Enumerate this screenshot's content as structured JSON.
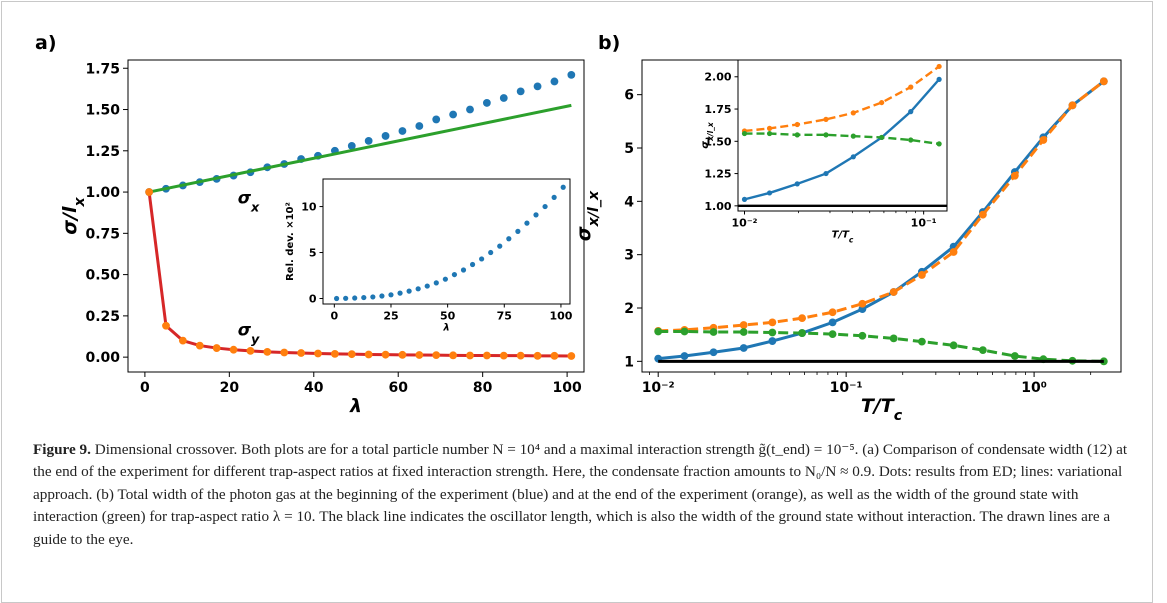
{
  "figure": {
    "panel_a_label": "a)",
    "panel_b_label": "b)"
  },
  "caption": {
    "label": "Figure 9.",
    "text": "Dimensional crossover. Both plots are for a total particle number N = 10⁴ and a maximal interaction strength g̃(t_end) = 10⁻⁵. (a) Comparison of condensate width (12) at the end of the experiment for different trap-aspect ratios at fixed interaction strength. Here, the condensate fraction amounts to N₀/N ≈ 0.9. Dots: results from ED; lines: variational approach. (b) Total width of the photon gas at the beginning of the experiment (blue) and at the end of the experiment (orange), as well as the width of the ground state with interaction (green) for trap-aspect ratio λ = 10. The black line indicates the oscillator length, which is also the width of the ground state without interaction. The drawn lines are a guide to the eye."
  },
  "colors": {
    "blue": "#1f77b4",
    "orange": "#ff7f0e",
    "green": "#2ca02c",
    "red": "#d62728",
    "black": "#000000"
  },
  "chart_data": [
    {
      "id": "a-main",
      "type": "scatter",
      "xlabel": "λ",
      "ylabel": "σ/l_x",
      "xlim": [
        -4,
        104
      ],
      "ylim": [
        -0.09,
        1.8
      ],
      "xticks": [
        0,
        20,
        40,
        60,
        80,
        100
      ],
      "xtick_labels": [
        "0",
        "20",
        "40",
        "60",
        "80",
        "100"
      ],
      "yticks": [
        0.0,
        0.25,
        0.5,
        0.75,
        1.0,
        1.25,
        1.5,
        1.75
      ],
      "ytick_labels": [
        "0.00",
        "0.25",
        "0.50",
        "0.75",
        "1.00",
        "1.25",
        "1.50",
        "1.75"
      ],
      "annotations": [
        {
          "text": "σ_x",
          "x": 22,
          "y": 0.93
        },
        {
          "text": "σ_y",
          "x": 22,
          "y": 0.13
        }
      ],
      "series": [
        {
          "name": "",
          "kind": "points",
          "color": "#1f77b4",
          "x": [
            1,
            5,
            9,
            13,
            17,
            21,
            25,
            29,
            33,
            37,
            41,
            45,
            49,
            53,
            57,
            61,
            65,
            69,
            73,
            77,
            81,
            85,
            89,
            93,
            97,
            101
          ],
          "y": [
            1.0,
            1.02,
            1.04,
            1.06,
            1.08,
            1.1,
            1.12,
            1.15,
            1.17,
            1.2,
            1.22,
            1.25,
            1.28,
            1.31,
            1.34,
            1.37,
            1.4,
            1.44,
            1.47,
            1.5,
            1.54,
            1.57,
            1.61,
            1.64,
            1.67,
            1.71
          ]
        },
        {
          "name": "",
          "kind": "line",
          "color": "#2ca02c",
          "x": [
            1,
            101
          ],
          "y": [
            1.0,
            1.525
          ]
        },
        {
          "name": "",
          "kind": "line",
          "color": "#d62728",
          "x": [
            1,
            5,
            9,
            13,
            17,
            21,
            25,
            29,
            33,
            37,
            41,
            45,
            49,
            53,
            57,
            61,
            65,
            69,
            73,
            77,
            81,
            85,
            89,
            93,
            97,
            101
          ],
          "y": [
            1.0,
            0.19,
            0.1,
            0.07,
            0.055,
            0.045,
            0.038,
            0.032,
            0.028,
            0.025,
            0.022,
            0.02,
            0.018,
            0.016,
            0.015,
            0.014,
            0.013,
            0.012,
            0.011,
            0.01,
            0.01,
            0.009,
            0.009,
            0.008,
            0.008,
            0.007
          ]
        },
        {
          "name": "",
          "kind": "points",
          "color": "#ff7f0e",
          "x": [
            1,
            5,
            9,
            13,
            17,
            21,
            25,
            29,
            33,
            37,
            41,
            45,
            49,
            53,
            57,
            61,
            65,
            69,
            73,
            77,
            81,
            85,
            89,
            93,
            97,
            101
          ],
          "y": [
            1.0,
            0.19,
            0.1,
            0.07,
            0.055,
            0.045,
            0.038,
            0.032,
            0.028,
            0.025,
            0.022,
            0.02,
            0.018,
            0.016,
            0.015,
            0.014,
            0.013,
            0.012,
            0.011,
            0.01,
            0.01,
            0.009,
            0.009,
            0.008,
            0.008,
            0.007
          ]
        }
      ]
    },
    {
      "id": "a-inset",
      "type": "scatter",
      "xlabel": "λ",
      "ylabel": "Rel. dev. ×10²",
      "xlim": [
        -5,
        104
      ],
      "ylim": [
        -0.6,
        13.0
      ],
      "xticks": [
        0,
        25,
        50,
        75,
        100
      ],
      "xtick_labels": [
        "0",
        "25",
        "50",
        "75",
        "100"
      ],
      "yticks": [
        0,
        5,
        10
      ],
      "ytick_labels": [
        "0",
        "5",
        "10"
      ],
      "series": [
        {
          "name": "",
          "kind": "points",
          "color": "#1f77b4",
          "x": [
            1,
            5,
            9,
            13,
            17,
            21,
            25,
            29,
            33,
            37,
            41,
            45,
            49,
            53,
            57,
            61,
            65,
            69,
            73,
            77,
            81,
            85,
            89,
            93,
            97,
            101
          ],
          "y": [
            0,
            0.02,
            0.05,
            0.1,
            0.17,
            0.27,
            0.4,
            0.58,
            0.8,
            1.05,
            1.35,
            1.7,
            2.1,
            2.6,
            3.1,
            3.7,
            4.3,
            5.0,
            5.7,
            6.5,
            7.3,
            8.2,
            9.1,
            10.0,
            11.0,
            12.1
          ]
        }
      ]
    },
    {
      "id": "b-main",
      "type": "line",
      "xscale": "log",
      "xlabel": "T/T_c",
      "ylabel": "σ_x/l_x",
      "xlim": [
        0.0082,
        2.9
      ],
      "ylim": [
        0.8,
        6.65
      ],
      "xticks": [
        0.01,
        0.1,
        1
      ],
      "xtick_labels": [
        "10⁻²",
        "10⁻¹",
        "10⁰"
      ],
      "yticks": [
        1,
        2,
        3,
        4,
        5,
        6
      ],
      "ytick_labels": [
        "1",
        "2",
        "3",
        "4",
        "5",
        "6"
      ],
      "series": [
        {
          "name": "",
          "color": "#1f77b4",
          "style": "solid",
          "x": [
            0.01,
            0.0138,
            0.0197,
            0.0285,
            0.0405,
            0.0583,
            0.0847,
            0.122,
            0.179,
            0.253,
            0.373,
            0.534,
            0.79,
            1.12,
            1.6,
            2.35
          ],
          "y": [
            1.05,
            1.1,
            1.17,
            1.25,
            1.38,
            1.53,
            1.73,
            1.98,
            2.3,
            2.68,
            3.15,
            3.8,
            4.55,
            5.2,
            5.8,
            6.25
          ]
        },
        {
          "name": "",
          "color": "#ff7f0e",
          "style": "dashed",
          "x": [
            0.01,
            0.0138,
            0.0197,
            0.0285,
            0.0405,
            0.0583,
            0.0847,
            0.122,
            0.179,
            0.253,
            0.373,
            0.534,
            0.79,
            1.12,
            1.6,
            2.35
          ],
          "y": [
            1.57,
            1.59,
            1.63,
            1.68,
            1.73,
            1.81,
            1.92,
            2.08,
            2.3,
            2.62,
            3.05,
            3.75,
            4.48,
            5.15,
            5.8,
            6.25
          ]
        },
        {
          "name": "",
          "color": "#2ca02c",
          "style": "dashed",
          "x": [
            0.01,
            0.0138,
            0.0197,
            0.0285,
            0.0405,
            0.0583,
            0.0847,
            0.122,
            0.179,
            0.253,
            0.373,
            0.534,
            0.79,
            1.12,
            1.6,
            2.35
          ],
          "y": [
            1.56,
            1.56,
            1.55,
            1.55,
            1.54,
            1.53,
            1.51,
            1.48,
            1.43,
            1.37,
            1.3,
            1.21,
            1.1,
            1.04,
            1.01,
            1.0
          ]
        },
        {
          "name": "",
          "color": "#000000",
          "style": "solid",
          "markers": false,
          "x": [
            0.01,
            2.35
          ],
          "y": [
            1.0,
            1.0
          ]
        }
      ]
    },
    {
      "id": "b-inset",
      "type": "line",
      "xscale": "log",
      "xlabel": "T/T_c",
      "ylabel": "σ_x/l_x",
      "xlim": [
        0.0092,
        0.135
      ],
      "ylim": [
        0.96,
        2.13
      ],
      "xticks": [
        0.01,
        0.1
      ],
      "xtick_labels": [
        "10⁻²",
        "10⁻¹"
      ],
      "yticks": [
        1.0,
        1.25,
        1.5,
        1.75,
        2.0
      ],
      "ytick_labels": [
        "1.00",
        "1.25",
        "1.50",
        "1.75",
        "2.00"
      ],
      "series": [
        {
          "name": "",
          "color": "#1f77b4",
          "style": "solid",
          "x": [
            0.01,
            0.0138,
            0.0197,
            0.0285,
            0.0405,
            0.0583,
            0.0847,
            0.122
          ],
          "y": [
            1.05,
            1.1,
            1.17,
            1.25,
            1.38,
            1.53,
            1.73,
            1.98
          ]
        },
        {
          "name": "",
          "color": "#ff7f0e",
          "style": "dashed",
          "x": [
            0.01,
            0.0138,
            0.0197,
            0.0285,
            0.0405,
            0.0583,
            0.0847,
            0.122
          ],
          "y": [
            1.58,
            1.6,
            1.63,
            1.67,
            1.72,
            1.8,
            1.92,
            2.08
          ]
        },
        {
          "name": "",
          "color": "#2ca02c",
          "style": "dashed",
          "x": [
            0.01,
            0.0138,
            0.0197,
            0.0285,
            0.0405,
            0.0583,
            0.0847,
            0.122
          ],
          "y": [
            1.56,
            1.56,
            1.55,
            1.55,
            1.54,
            1.53,
            1.51,
            1.48
          ]
        },
        {
          "name": "",
          "color": "#000000",
          "style": "solid",
          "markers": false,
          "x": [
            0.0092,
            0.135
          ],
          "y": [
            1.0,
            1.0
          ]
        }
      ]
    }
  ]
}
